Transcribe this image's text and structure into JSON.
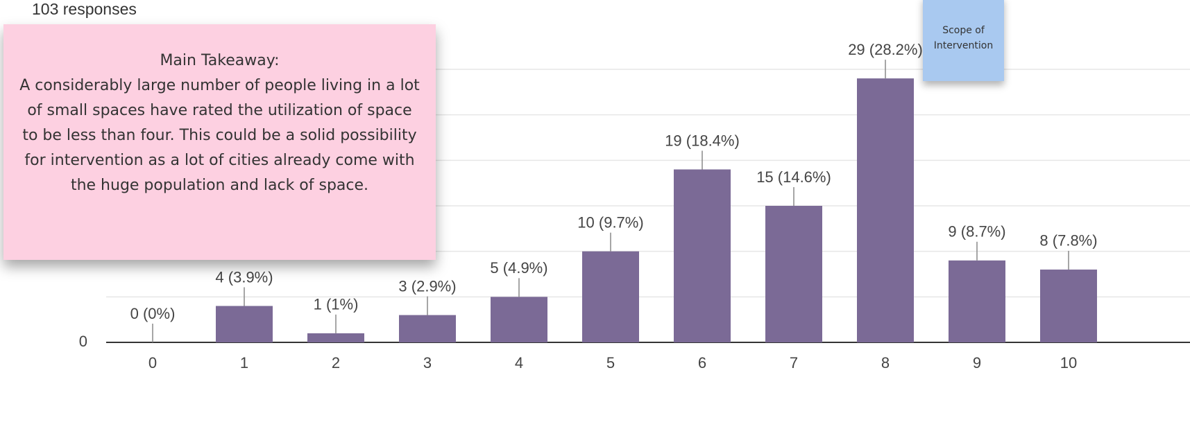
{
  "header": {
    "responses": "103 responses"
  },
  "chart_data": {
    "type": "bar",
    "categories": [
      "0",
      "1",
      "2",
      "3",
      "4",
      "5",
      "6",
      "7",
      "8",
      "9",
      "10"
    ],
    "values": [
      0,
      4,
      1,
      3,
      5,
      10,
      19,
      15,
      29,
      9,
      8
    ],
    "value_labels": [
      "0 (0%)",
      "4 (3.9%)",
      "1 (1%)",
      "3 (2.9%)",
      "5 (4.9%)",
      "10 (9.7%)",
      "19 (18.4%)",
      "15 (14.6%)",
      "29 (28.2%)",
      "9 (8.7%)",
      "8 (7.8%)"
    ],
    "color": "#7b6a96",
    "ylim": [
      0,
      30
    ],
    "yticks": [
      0
    ],
    "ygrid": [
      5,
      10,
      15,
      20,
      25,
      30
    ]
  },
  "notes": {
    "takeaway_title": "Main Takeaway:",
    "takeaway_text": "A considerably large number of people living in a lot of small spaces have rated the utilization of space to be less than four. This could be a solid possibility for intervention as a lot of cities already come with the huge population and lack of space.",
    "scope": "Scope of Intervention"
  }
}
